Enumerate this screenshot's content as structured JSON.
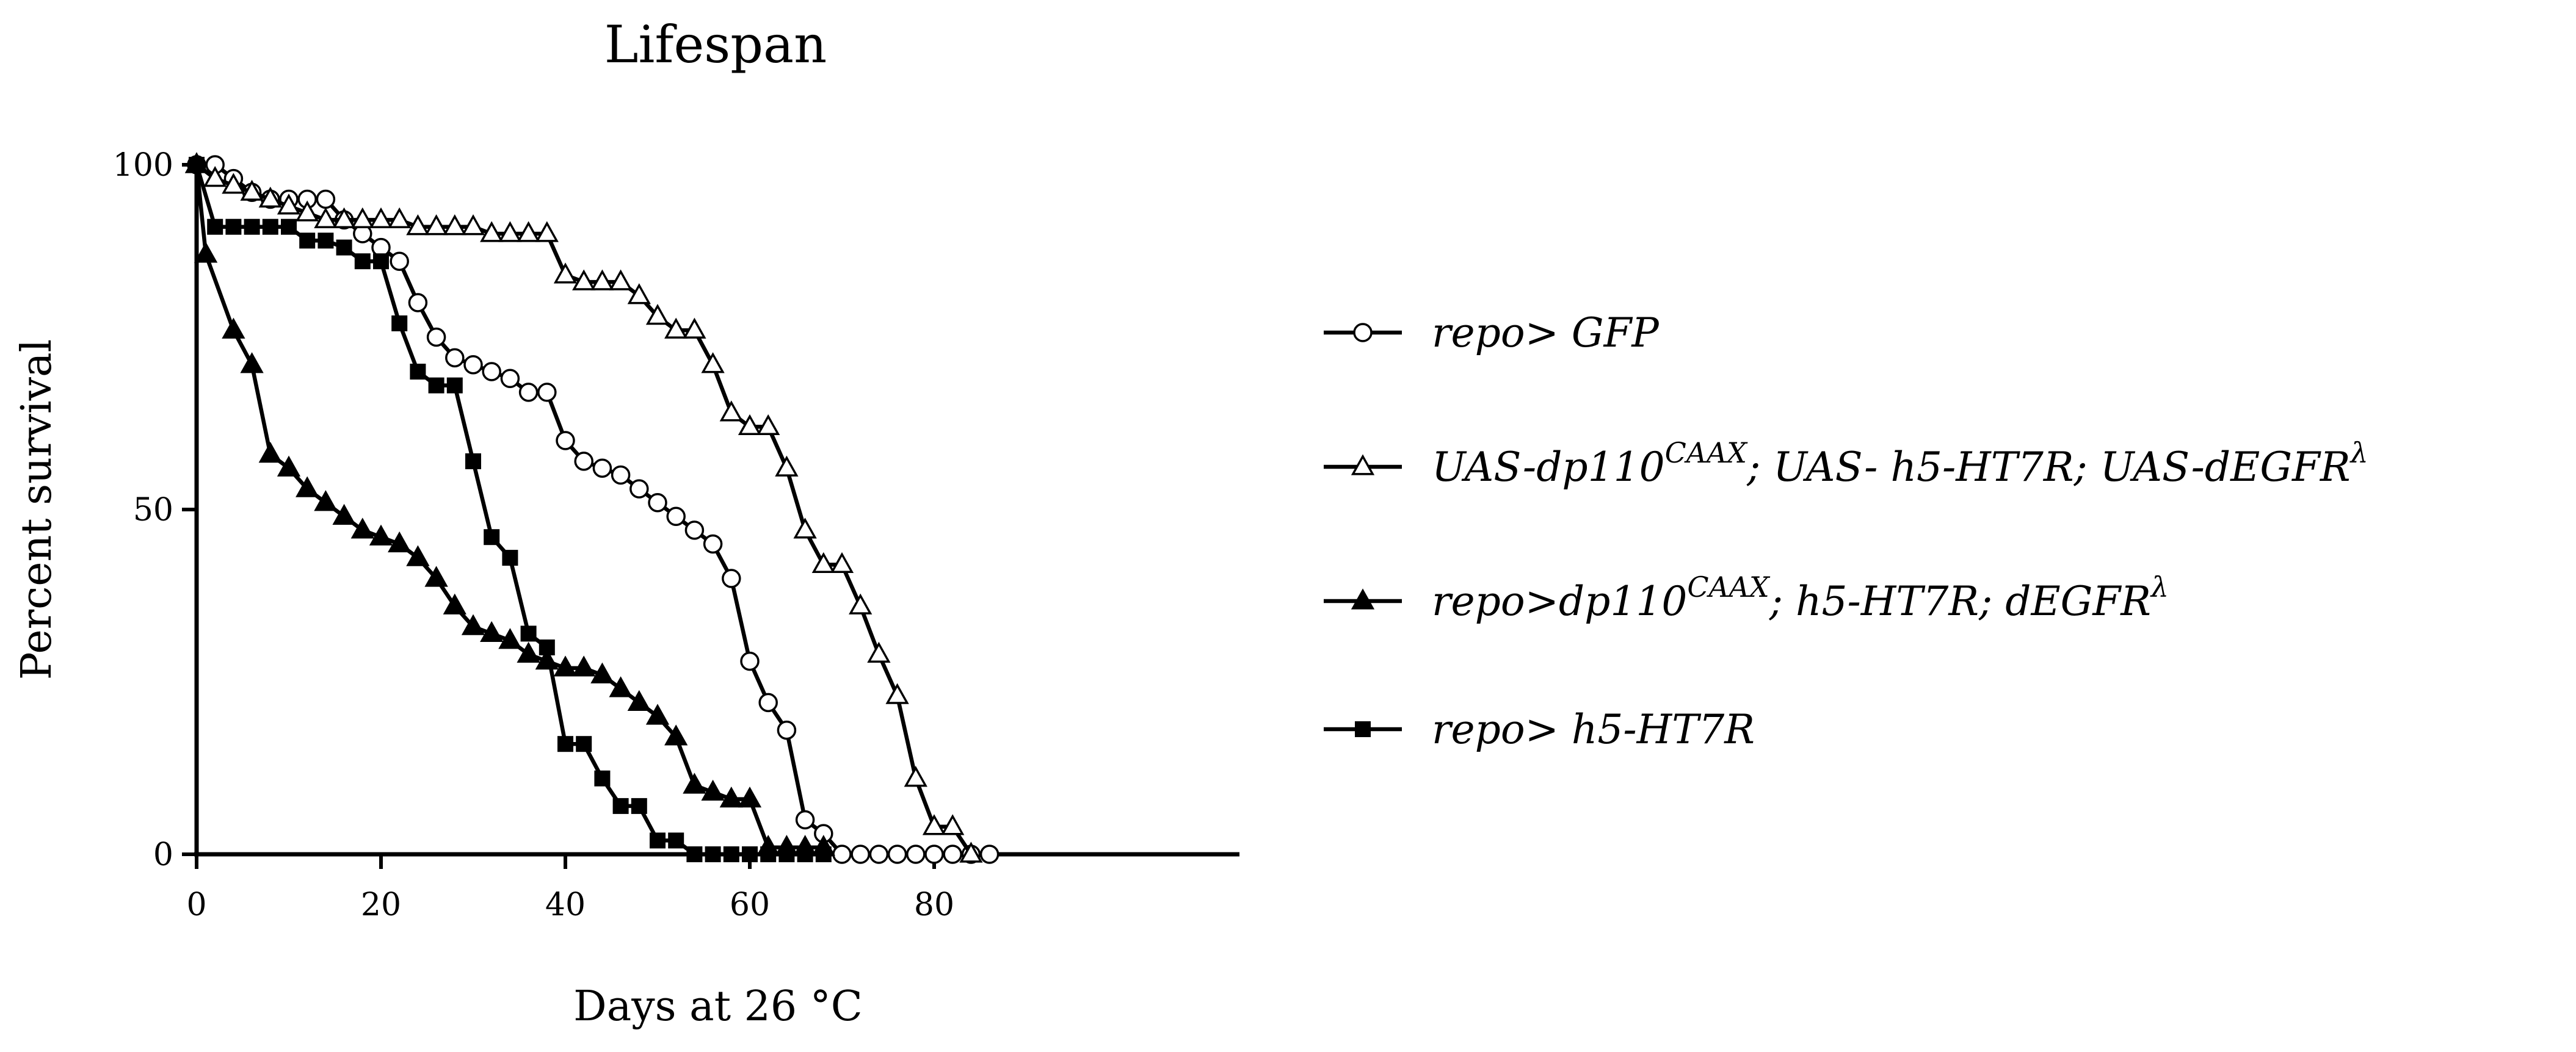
{
  "chart_data": {
    "type": "line",
    "title": "Lifespan",
    "xlabel": "Days at 26 °C",
    "ylabel": "Percent survival",
    "xlim": [
      0,
      90
    ],
    "ylim": [
      0,
      100
    ],
    "xticks": [
      0,
      20,
      40,
      60,
      80
    ],
    "yticks": [
      0,
      50,
      100
    ],
    "grid": false,
    "legend_position": "right",
    "series": [
      {
        "name": "repo> GFP",
        "legend_parts": [
          [
            "repo",
            ""
          ],
          [
            "> GFP",
            ""
          ]
        ],
        "marker": "circle-open",
        "x": [
          0,
          2,
          4,
          6,
          8,
          10,
          12,
          14,
          16,
          18,
          20,
          22,
          24,
          26,
          28,
          30,
          32,
          34,
          36,
          38,
          40,
          42,
          44,
          46,
          48,
          50,
          52,
          54,
          56,
          58,
          60,
          62,
          64,
          66,
          68,
          70,
          72,
          74,
          76,
          78,
          80,
          82,
          84,
          86
        ],
        "y": [
          100,
          100,
          98,
          96,
          95,
          95,
          95,
          95,
          92,
          90,
          88,
          86,
          80,
          75,
          72,
          71,
          70,
          69,
          67,
          67,
          60,
          57,
          56,
          55,
          53,
          51,
          49,
          47,
          45,
          40,
          28,
          22,
          18,
          5,
          3,
          0,
          0,
          0,
          0,
          0,
          0,
          0,
          0,
          0
        ]
      },
      {
        "name": "UAS-dp110CAAX; UAS- h5-HT7R; UAS-dEGFRλ",
        "legend_parts": [
          [
            "UAS-dp110",
            ""
          ],
          [
            "CAAX",
            "sup"
          ],
          [
            "; UAS- h5-HT7R; UAS-dEGFR",
            ""
          ],
          [
            "λ",
            "sup"
          ]
        ],
        "marker": "triangle-open",
        "x": [
          0,
          2,
          4,
          6,
          8,
          10,
          12,
          14,
          16,
          18,
          20,
          22,
          24,
          26,
          28,
          30,
          32,
          34,
          36,
          38,
          40,
          42,
          44,
          46,
          48,
          50,
          52,
          54,
          56,
          58,
          60,
          62,
          64,
          66,
          68,
          70,
          72,
          74,
          76,
          78,
          80,
          82,
          84
        ],
        "y": [
          100,
          98,
          97,
          96,
          95,
          94,
          93,
          92,
          92,
          92,
          92,
          92,
          91,
          91,
          91,
          91,
          90,
          90,
          90,
          90,
          84,
          83,
          83,
          83,
          81,
          78,
          76,
          76,
          71,
          64,
          62,
          62,
          56,
          47,
          42,
          42,
          36,
          29,
          23,
          11,
          4,
          4,
          0
        ]
      },
      {
        "name": "repo>dp110CAAX; h5-HT7R; dEGFRλ",
        "legend_parts": [
          [
            "repo>dp110",
            ""
          ],
          [
            "CAAX",
            "sup"
          ],
          [
            "; h5-HT7R; dEGFR",
            ""
          ],
          [
            "λ",
            "sup"
          ]
        ],
        "marker": "triangle-filled",
        "x": [
          0,
          1,
          4,
          6,
          8,
          10,
          12,
          14,
          16,
          18,
          20,
          22,
          24,
          26,
          28,
          30,
          32,
          34,
          36,
          38,
          40,
          42,
          44,
          46,
          48,
          50,
          52,
          54,
          56,
          58,
          60,
          62,
          64,
          66,
          68
        ],
        "y": [
          100,
          87,
          76,
          71,
          58,
          56,
          53,
          51,
          49,
          47,
          46,
          45,
          43,
          40,
          36,
          33,
          32,
          31,
          29,
          28,
          27,
          27,
          26,
          24,
          22,
          20,
          17,
          10,
          9,
          8,
          8,
          1,
          1,
          1,
          1
        ]
      },
      {
        "name": "repo> h5-HT7R",
        "legend_parts": [
          [
            "repo",
            ""
          ],
          [
            "> h5-HT7R",
            ""
          ]
        ],
        "marker": "square-filled",
        "x": [
          0,
          2,
          4,
          6,
          8,
          10,
          12,
          14,
          16,
          18,
          20,
          22,
          24,
          26,
          28,
          30,
          32,
          34,
          36,
          38,
          40,
          42,
          44,
          46,
          48,
          50,
          52,
          54,
          56,
          58,
          60,
          62,
          64,
          66,
          68
        ],
        "y": [
          100,
          91,
          91,
          91,
          91,
          91,
          89,
          89,
          88,
          86,
          86,
          77,
          70,
          68,
          68,
          57,
          46,
          43,
          32,
          30,
          16,
          16,
          11,
          7,
          7,
          2,
          2,
          0,
          0,
          0,
          0,
          0,
          0,
          0,
          0
        ]
      }
    ]
  }
}
